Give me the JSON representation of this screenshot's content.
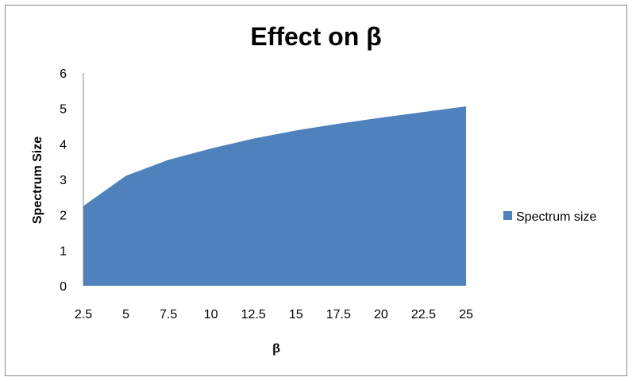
{
  "chart_data": {
    "type": "area",
    "title": "Effect on β",
    "xlabel": "β",
    "ylabel": "Spectrum Size",
    "categories": [
      "2.5",
      "5",
      "7.5",
      "10",
      "12.5",
      "15",
      "17.5",
      "20",
      "22.5",
      "25"
    ],
    "series": [
      {
        "name": "Spectrum size",
        "values": [
          2.25,
          3.1,
          3.55,
          3.87,
          4.15,
          4.38,
          4.57,
          4.74,
          4.9,
          5.06
        ],
        "color": "#4f81bd"
      }
    ],
    "ylim": [
      0,
      6
    ],
    "yticks": [
      "0",
      "1",
      "2",
      "3",
      "4",
      "5",
      "6"
    ],
    "grid": false,
    "legend_position": "right"
  }
}
